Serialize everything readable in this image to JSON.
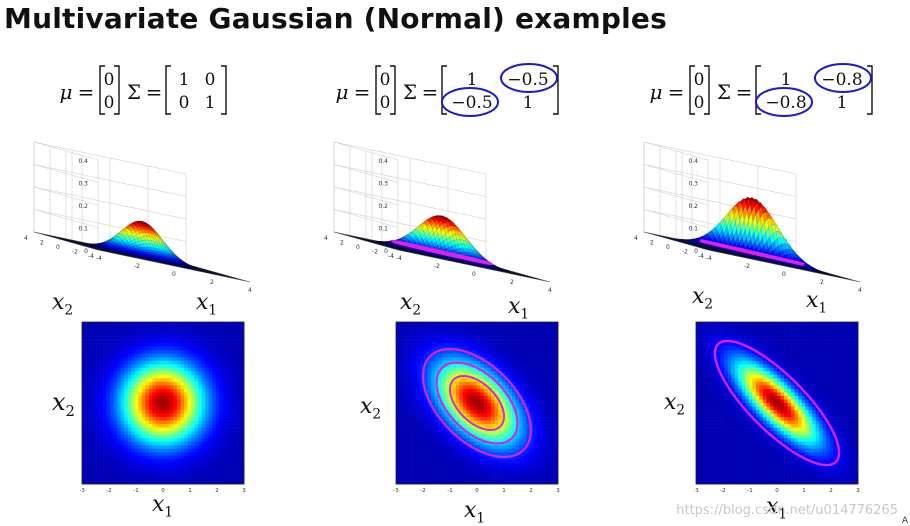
{
  "slide": {
    "title": "Multivariate Gaussian (Normal) examples",
    "watermark": "https://blog.csdn.net/u014776265",
    "corner_mark": "A"
  },
  "symbols": {
    "mu": "μ",
    "equals": "=",
    "sigma": "Σ"
  },
  "axis_labels": {
    "x1": "x",
    "x2": "x",
    "sub1": "1",
    "sub2": "2"
  },
  "annotation_color": "#e020e0",
  "colormap": "jet",
  "panels": [
    {
      "mu": [
        "0",
        "0"
      ],
      "sigma": [
        [
          "1",
          "0"
        ],
        [
          "0",
          "1"
        ]
      ],
      "cov": 0,
      "circled": false,
      "surface_z_ticks": [
        "0.4",
        "0.3",
        "0.2",
        "0.1",
        "0"
      ],
      "surface_x_ticks": [
        "-4",
        "-2",
        "0",
        "2",
        "4"
      ],
      "heat_ticks": [
        "-3",
        "-2",
        "-1",
        "0",
        "1",
        "2",
        "3"
      ]
    },
    {
      "mu": [
        "0",
        "0"
      ],
      "sigma": [
        [
          "1",
          "−0.5"
        ],
        [
          "−0.5",
          "1"
        ]
      ],
      "cov": -0.5,
      "circled": true,
      "surface_z_ticks": [
        "0.4",
        "0.3",
        "0.2",
        "0.1",
        "0"
      ],
      "surface_x_ticks": [
        "-4",
        "-2",
        "0",
        "2",
        "4"
      ],
      "heat_ticks": [
        "-3",
        "-2",
        "-1",
        "0",
        "1",
        "2",
        "3"
      ]
    },
    {
      "mu": [
        "0",
        "0"
      ],
      "sigma": [
        [
          "1",
          "−0.8"
        ],
        [
          "−0.8",
          "1"
        ]
      ],
      "cov": -0.8,
      "circled": true,
      "surface_z_ticks": [
        "0.4",
        "0.3",
        "0.2",
        "0.1",
        "0"
      ],
      "surface_x_ticks": [
        "-4",
        "-2",
        "0",
        "2",
        "4"
      ],
      "heat_ticks": [
        "-3",
        "-2",
        "-1",
        "0",
        "1",
        "2",
        "3"
      ]
    }
  ]
}
